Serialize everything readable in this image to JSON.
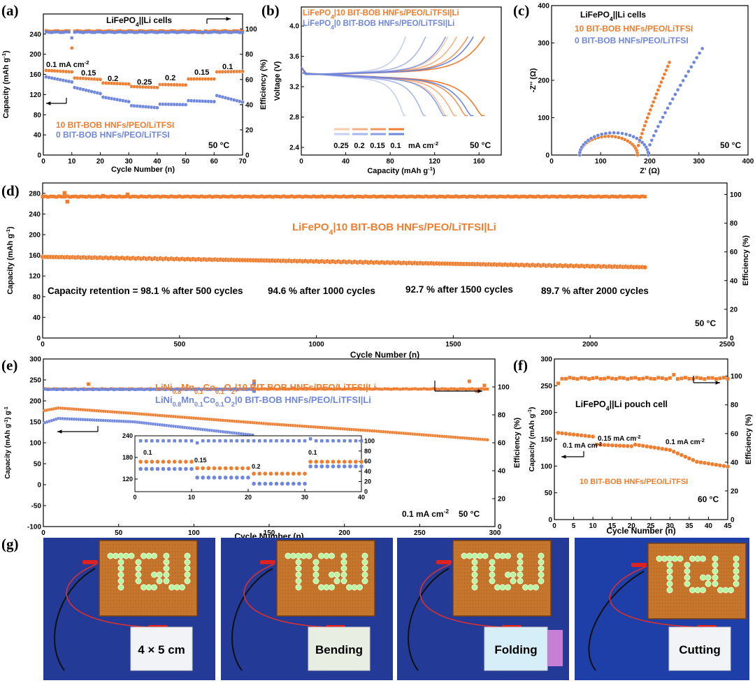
{
  "colors": {
    "orange": "#ef7d2f",
    "blue": "#6f86dd",
    "axis": "#000000"
  },
  "panels": {
    "a": "(a)",
    "b": "(b)",
    "c": "(c)",
    "d": "(d)",
    "e": "(e)",
    "f": "(f)",
    "g": "(g)"
  },
  "chart_data": [
    {
      "id": "a",
      "type": "scatter",
      "title": "LiFePO4||Li cells",
      "xlabel": "Cycle Number (n)",
      "ylabel": "Capacity (mAh g-1)",
      "ylabel_right": "Efficiency (%)",
      "xlim": [
        0,
        70
      ],
      "ylim": [
        0,
        280
      ],
      "ylim_right": [
        0,
        112
      ],
      "xticks": [
        "0",
        "10",
        "20",
        "30",
        "40",
        "50",
        "60",
        "70"
      ],
      "yticks": [
        "0",
        "40",
        "80",
        "120",
        "160",
        "200",
        "240"
      ],
      "yticks_right": [
        "0",
        "20",
        "40",
        "60",
        "80",
        "100"
      ],
      "legend": [
        "10 BIT-BOB HNFs/PEO/LiTFSI",
        "0 BIT-BOB HNFs/PEO/LiTFSI"
      ],
      "annotations": [
        "0.1 mA cm-2",
        "0.15",
        "0.2",
        "0.25",
        "0.2",
        "0.15",
        "0.1",
        "50 °C"
      ],
      "series": [
        {
          "name": "10 BIT-BOB HNFs/PEO/LiTFSI",
          "color": "#ef7d2f",
          "segments": [
            [
              1,
              10,
              168,
              165
            ],
            [
              11,
              20,
              153,
              150
            ],
            [
              21,
              30,
              143,
              141
            ],
            [
              31,
              40,
              136,
              134
            ],
            [
              41,
              50,
              140,
              139
            ],
            [
              51,
              60,
              151,
              151
            ],
            [
              61,
              70,
              165,
              166
            ]
          ]
        },
        {
          "name": "0 BIT-BOB HNFs/PEO/LiTFSI",
          "color": "#6f86dd",
          "segments": [
            [
              1,
              10,
              155,
              145
            ],
            [
              11,
              20,
              134,
              122
            ],
            [
              21,
              30,
              115,
              106
            ],
            [
              31,
              40,
              98,
              94
            ],
            [
              41,
              50,
              101,
              100
            ],
            [
              51,
              60,
              108,
              106
            ],
            [
              61,
              70,
              118,
              105
            ]
          ]
        }
      ],
      "efficiency": [
        {
          "color": "#ef7d2f",
          "value": 98.5,
          "outliers": [
            [
              10,
              85
            ],
            [
              56,
              97
            ]
          ]
        },
        {
          "color": "#6f86dd",
          "value": 97.5,
          "outliers": [
            [
              10,
              93
            ]
          ]
        }
      ]
    },
    {
      "id": "b",
      "type": "line",
      "xlabel": "Capacity (mAh g-1)",
      "ylabel": "Voltage (V)",
      "xlim": [
        0,
        180
      ],
      "ylim": [
        2.3,
        4.25
      ],
      "xticks": [
        "0",
        "40",
        "80",
        "120",
        "160"
      ],
      "yticks": [
        "2.4",
        "2.8",
        "3.2",
        "3.6",
        "4.0"
      ],
      "legend": [
        "LiFePO4|10 BIT-BOB HNFs/PEO/LiTFSI|Li",
        "LiFePO4|0 BIT-BOB HNFs/PEO/LiTFSI|Li"
      ],
      "rate_labels": [
        "0.25",
        "0.2",
        "0.15",
        "0.1"
      ],
      "rate_unit": "mA cm-2",
      "annotation": "50 °C",
      "series": [
        {
          "name": "orange 0.1",
          "color": "#ef7d2f",
          "alpha": 1.0,
          "capacity": 165
        },
        {
          "name": "orange 0.15",
          "color": "#ef7d2f",
          "alpha": 0.8,
          "capacity": 150
        },
        {
          "name": "orange 0.2",
          "color": "#ef7d2f",
          "alpha": 0.6,
          "capacity": 140
        },
        {
          "name": "orange 0.25",
          "color": "#ef7d2f",
          "alpha": 0.4,
          "capacity": 132
        },
        {
          "name": "blue 0.1",
          "color": "#6f86dd",
          "alpha": 1.0,
          "capacity": 155
        },
        {
          "name": "blue 0.15",
          "color": "#6f86dd",
          "alpha": 0.8,
          "capacity": 130
        },
        {
          "name": "blue 0.2",
          "color": "#6f86dd",
          "alpha": 0.6,
          "capacity": 112
        },
        {
          "name": "blue 0.25",
          "color": "#6f86dd",
          "alpha": 0.4,
          "capacity": 94
        }
      ]
    },
    {
      "id": "c",
      "type": "scatter",
      "title": "LiFePO4||Li cells",
      "xlabel": "Z' (Ω)",
      "ylabel": "-Z'' (Ω)",
      "xlim": [
        0,
        400
      ],
      "ylim": [
        0,
        400
      ],
      "xticks": [
        "0",
        "100",
        "200",
        "300",
        "400"
      ],
      "yticks": [
        "0",
        "100",
        "200",
        "300",
        "400"
      ],
      "legend": [
        "10 BIT-BOB HNFs/PEO/LiTFSI",
        "0 BIT-BOB HNFs/PEO/LiTFSI"
      ],
      "annotation": "50 °C",
      "series": [
        {
          "name": "10 BIT-BOB HNFs/PEO/LiTFSI",
          "color": "#ef7d2f",
          "r0": 57,
          "diam": 118,
          "tail_end": [
            240,
            248
          ]
        },
        {
          "name": "0 BIT-BOB HNFs/PEO/LiTFSI",
          "color": "#6f86dd",
          "r0": 57,
          "diam": 140,
          "tail_end": [
            307,
            285
          ]
        }
      ]
    },
    {
      "id": "d",
      "type": "scatter",
      "xlabel": "Cycle Number (n)",
      "ylabel": "Capacity (mAh g-1)",
      "ylabel_right": "Efficiency (%)",
      "xlim": [
        0,
        2500
      ],
      "ylim": [
        0,
        300
      ],
      "ylim_right": [
        0,
        108
      ],
      "xticks": [
        "0",
        "500",
        "1000",
        "1500",
        "2000",
        "2500"
      ],
      "yticks": [
        "0",
        "40",
        "80",
        "120",
        "160",
        "200",
        "240",
        "280"
      ],
      "yticks_right": [
        "0",
        "20",
        "40",
        "60",
        "80",
        "100"
      ],
      "label": "LiFePO4|10 BIT-BOB HNFs/PEO/LiTFSI|Li",
      "annotations": [
        "Capacity retention = 98.1 % after 500 cycles",
        "94.6 % after 1000 cycles",
        "92.7 % after 1500 cycles",
        "89.7 % after 2000 cycles",
        "50 °C"
      ],
      "series": [
        {
          "name": "LiFePO4|10 BIT-BOB HNFs/PEO/LiTFSI|Li",
          "color": "#ef7d2f",
          "start": 157,
          "end": 137,
          "cycles": 2200
        }
      ],
      "efficiency": {
        "value": 98.5,
        "outliers": [
          [
            80,
            101
          ],
          [
            90,
            95
          ],
          [
            220,
            99
          ],
          [
            310,
            100
          ]
        ]
      }
    },
    {
      "id": "e",
      "type": "scatter",
      "xlabel": "Cycle Number (n)",
      "ylabel": "Capacity (mAh g-1)",
      "ylabel_right": "Efficiency (%)",
      "xlim": [
        0,
        300
      ],
      "ylim": [
        -100,
        300
      ],
      "ylim_right": [
        0,
        120
      ],
      "xticks": [
        "0",
        "50",
        "100",
        "150",
        "200",
        "250",
        "300"
      ],
      "yticks": [
        "-100",
        "-50",
        "0",
        "50",
        "100",
        "150",
        "200",
        "250",
        "300"
      ],
      "yticks_right": [
        "0",
        "20",
        "40",
        "60",
        "80",
        "100"
      ],
      "legend": [
        "LiNi0.8Mn0.1Co0.1O2|10 BIT-BOB HNFs/PEO/LiTFSI|Li",
        "LiNi0.8Mn0.1Co0.1O2|0 BIT-BOB HNFs/PEO/LiTFSI|Li"
      ],
      "annotations": [
        "0.1 mA cm-2",
        "50 °C"
      ],
      "series": [
        {
          "name": "10 BIT-BOB",
          "color": "#ef7d2f",
          "points": [
            [
              1,
              177
            ],
            [
              10,
              183
            ],
            [
              60,
              170
            ],
            [
              150,
              145
            ],
            [
              220,
              128
            ],
            [
              295,
              107
            ]
          ]
        },
        {
          "name": "0 BIT-BOB",
          "color": "#6f86dd",
          "points": [
            [
              1,
              148
            ],
            [
              10,
              158
            ],
            [
              60,
              150
            ],
            [
              110,
              130
            ],
            [
              140,
              118
            ]
          ]
        }
      ],
      "inset": {
        "xlim": [
          0,
          40
        ],
        "ylim": [
          85,
          240
        ],
        "ylim_right": [
          0,
          110
        ],
        "xticks": [
          "0",
          "10",
          "20",
          "30",
          "40"
        ],
        "yticks": [
          "120",
          "180",
          "240"
        ],
        "yticks_right": [
          "0",
          "20",
          "40",
          "60",
          "80",
          "100"
        ],
        "rate_labels": [
          "0.1",
          "0.15",
          "0.2",
          "0.1"
        ],
        "orange": [
          [
            1,
            10,
            168
          ],
          [
            11,
            20,
            150
          ],
          [
            21,
            30,
            135
          ],
          [
            31,
            40,
            168
          ]
        ],
        "blue": [
          [
            1,
            10,
            148
          ],
          [
            11,
            20,
            124
          ],
          [
            21,
            30,
            107
          ],
          [
            31,
            40,
            155
          ]
        ]
      }
    },
    {
      "id": "f",
      "type": "scatter",
      "title": "LiFePO4||Li pouch cell",
      "xlabel": "Cycle Number (n)",
      "ylabel": "Capacity (mAh g-1)",
      "ylabel_right": "Efficiency (%)",
      "xlim": [
        0,
        45
      ],
      "ylim": [
        0,
        300
      ],
      "ylim_right": [
        0,
        112
      ],
      "xticks": [
        "0",
        "5",
        "10",
        "15",
        "20",
        "25",
        "30",
        "35",
        "40",
        "45"
      ],
      "yticks": [
        "0",
        "50",
        "100",
        "150",
        "200",
        "250",
        "300"
      ],
      "yticks_right": [
        "0",
        "20",
        "40",
        "60",
        "80",
        "100"
      ],
      "annotations": [
        "0.1 mA cm-2",
        "0.15 mA cm-2",
        "0.1 mA cm-2",
        "10 BIT-BOB HNFs/PEO/LiTFSI",
        "60 °C"
      ],
      "series": [
        {
          "name": "10 BIT-BOB HNFs/PEO/LiTFSI",
          "color": "#ef7d2f",
          "points": [
            [
              1,
              162
            ],
            [
              10,
              155
            ],
            [
              11,
              140
            ],
            [
              20,
              137
            ],
            [
              21,
              140
            ],
            [
              30,
              130
            ],
            [
              37,
              108
            ],
            [
              45,
              99
            ]
          ]
        }
      ],
      "efficiency": {
        "value": 98.5,
        "outliers": [
          [
            1,
            95
          ],
          [
            31,
            101
          ]
        ]
      }
    }
  ],
  "photos": [
    {
      "label": "4 × 5 cm",
      "text": "TGU"
    },
    {
      "label": "Bending",
      "text": "TGU"
    },
    {
      "label": "Folding",
      "text": "TGU"
    },
    {
      "label": "Cutting",
      "text": "TGU"
    }
  ]
}
